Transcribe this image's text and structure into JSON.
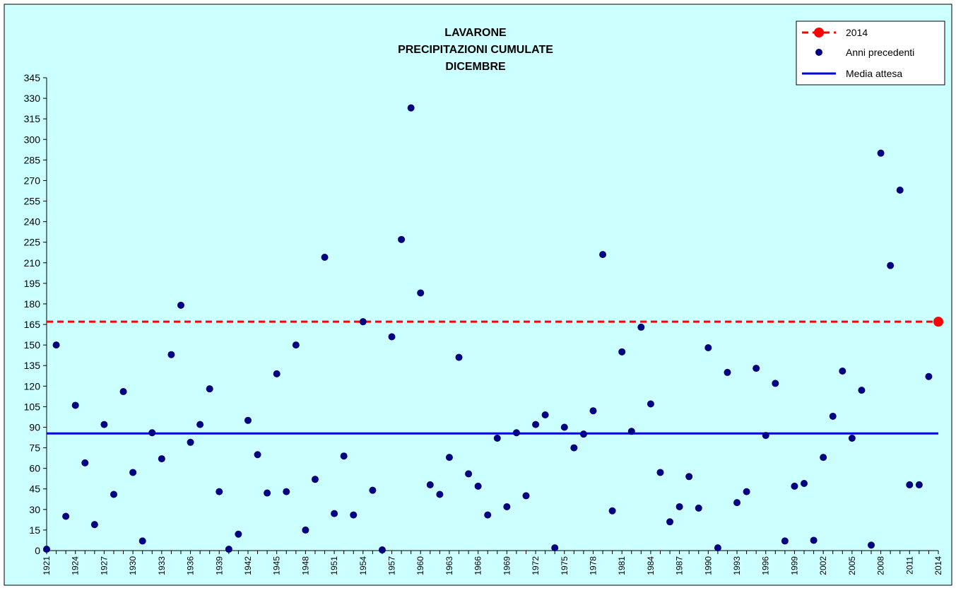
{
  "chart_data": {
    "type": "scatter",
    "title": [
      "LAVARONE",
      "PRECIPITAZIONI CUMULATE",
      "DICEMBRE"
    ],
    "xlabel": "",
    "ylabel": "",
    "ylim": [
      0,
      345
    ],
    "yticks": [
      0,
      15,
      30,
      45,
      60,
      75,
      90,
      105,
      120,
      135,
      150,
      165,
      180,
      195,
      210,
      225,
      240,
      255,
      270,
      285,
      300,
      315,
      330,
      345
    ],
    "x_tick_labels": [
      "1921",
      "1924",
      "1927",
      "1930",
      "1933",
      "1936",
      "1939",
      "1942",
      "1945",
      "1948",
      "1951",
      "1954",
      "1957",
      "1960",
      "1963",
      "1966",
      "1969",
      "1972",
      "1975",
      "1978",
      "1981",
      "1984",
      "1987",
      "1990",
      "1993",
      "1996",
      "1999",
      "2002",
      "2005",
      "2008",
      "2011",
      "2014"
    ],
    "grid": false,
    "legend_position": "top-right",
    "legend": [
      {
        "label": "2014",
        "style": "dashed-line-with-red-dot"
      },
      {
        "label": "Anni precedenti",
        "style": "navy-dot"
      },
      {
        "label": "Media attesa",
        "style": "blue-line"
      }
    ],
    "colors": {
      "plot_bg": "#ccffff",
      "points": "#000080",
      "mean_line": "#0000dd",
      "highlight": "#ff0000"
    },
    "series": [
      {
        "name": "Anni precedenti",
        "x": [
          1921,
          1922,
          1923,
          1924,
          1925,
          1926,
          1927,
          1928,
          1929,
          1930,
          1931,
          1932,
          1933,
          1934,
          1935,
          1936,
          1937,
          1938,
          1939,
          1940,
          1941,
          1942,
          1943,
          1944,
          1945,
          1946,
          1947,
          1948,
          1949,
          1950,
          1951,
          1952,
          1953,
          1954,
          1955,
          1956,
          1957,
          1958,
          1959,
          1960,
          1961,
          1962,
          1963,
          1964,
          1965,
          1966,
          1967,
          1968,
          1969,
          1970,
          1971,
          1972,
          1973,
          1974,
          1975,
          1976,
          1977,
          1978,
          1979,
          1980,
          1981,
          1982,
          1983,
          1984,
          1985,
          1986,
          1987,
          1988,
          1989,
          1990,
          1991,
          1992,
          1993,
          1994,
          1995,
          1996,
          1997,
          1998,
          1999,
          2000,
          2001,
          2002,
          2003,
          2004,
          2005,
          2006,
          2007,
          2008,
          2009,
          2010,
          2011,
          2012,
          2013
        ],
        "y": [
          1,
          150,
          25,
          106,
          64,
          19,
          92,
          41,
          116,
          57,
          7,
          86,
          67,
          143,
          179,
          79,
          92,
          118,
          43,
          1,
          12,
          95,
          70,
          42,
          129,
          43,
          150,
          15,
          52,
          214,
          27,
          69,
          26,
          167,
          44,
          0.5,
          156,
          227,
          323,
          188,
          48,
          41,
          68,
          141,
          56,
          47,
          26,
          82,
          32,
          86,
          40,
          92,
          99,
          2,
          90,
          75,
          85,
          102,
          216,
          29,
          145,
          87,
          163,
          107,
          57,
          21,
          32,
          54,
          31,
          148,
          2,
          130,
          35,
          43,
          133,
          84,
          122,
          7,
          47,
          49,
          7.5,
          68,
          98,
          131,
          82,
          117,
          4,
          290,
          208,
          263,
          48,
          48,
          127
        ]
      },
      {
        "name": "2014",
        "x": [
          2014
        ],
        "y": [
          167
        ]
      },
      {
        "name": "Media attesa",
        "value": 85.5
      }
    ]
  }
}
